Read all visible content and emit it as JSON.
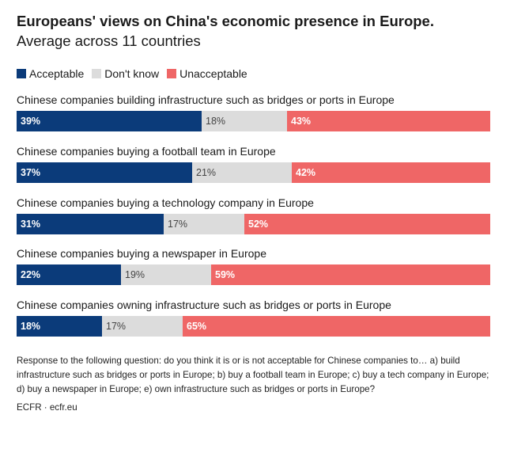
{
  "title": {
    "bold": "Europeans' views on China's economic presence in Europe.",
    "normal": "Average across 11 countries"
  },
  "legend": {
    "acceptable": "Acceptable",
    "dont_know": "Don't know",
    "unacceptable": "Unacceptable"
  },
  "colors": {
    "acceptable": "#0b3b7a",
    "dont_know": "#dcdcdc",
    "unacceptable": "#ef6666"
  },
  "chart_data": {
    "type": "bar",
    "orientation": "horizontal",
    "stacked": true,
    "categories": [
      "Chinese companies building infrastructure such as bridges or ports in Europe",
      "Chinese companies buying a football team in Europe",
      "Chinese companies buying a technology company in Europe",
      "Chinese companies buying a newspaper in Europe",
      "Chinese companies owning infrastructure such as bridges or ports in Europe"
    ],
    "series": [
      {
        "name": "Acceptable",
        "values": [
          39,
          37,
          31,
          22,
          18
        ]
      },
      {
        "name": "Don't know",
        "values": [
          18,
          21,
          17,
          19,
          17
        ]
      },
      {
        "name": "Unacceptable",
        "values": [
          43,
          42,
          52,
          59,
          65
        ]
      }
    ],
    "value_labels": [
      [
        "39%",
        "18%",
        "43%"
      ],
      [
        "37%",
        "21%",
        "42%"
      ],
      [
        "31%",
        "17%",
        "52%"
      ],
      [
        "22%",
        "19%",
        "59%"
      ],
      [
        "18%",
        "17%",
        "65%"
      ]
    ],
    "legend_position": "top-left",
    "grid": false
  },
  "note": "Response to the following question: do you think it is or is not acceptable for Chinese companies to… a) build infrastructure such as bridges or ports in Europe; b) buy a football team in Europe; c) buy a tech company in Europe; d) buy a newspaper in Europe; e) own infrastructure such as bridges or ports in Europe?",
  "source": "ECFR · ecfr.eu"
}
